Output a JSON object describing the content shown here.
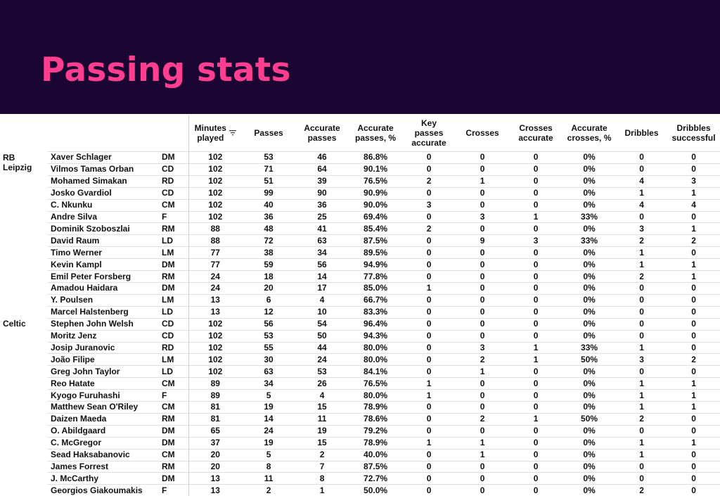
{
  "title": "Passing stats",
  "columns": [
    {
      "label": "Minutes\nplayed",
      "sort_icon": "sort-desc-icon"
    },
    {
      "label": "Passes"
    },
    {
      "label": "Accurate\npasses"
    },
    {
      "label": "Accurate\npasses, %"
    },
    {
      "label": "Key\npasses\naccurate"
    },
    {
      "label": "Crosses"
    },
    {
      "label": "Crosses\naccurate"
    },
    {
      "label": "Accurate\ncrosses, %"
    },
    {
      "label": "Dribbles"
    },
    {
      "label": "Dribbles\nsuccessful"
    }
  ],
  "teams": [
    {
      "name": "RB\nLeipzig",
      "players": [
        [
          "Xaver Schlager",
          "DM",
          "102",
          "53",
          "46",
          "86.8%",
          "0",
          "0",
          "0",
          "0%",
          "0",
          "0"
        ],
        [
          "Vilmos Tamas Orban",
          "CD",
          "102",
          "71",
          "64",
          "90.1%",
          "0",
          "0",
          "0",
          "0%",
          "0",
          "0"
        ],
        [
          "Mohamed Simakan",
          "RD",
          "102",
          "51",
          "39",
          "76.5%",
          "2",
          "1",
          "0",
          "0%",
          "4",
          "3"
        ],
        [
          "Josko Gvardiol",
          "CD",
          "102",
          "99",
          "90",
          "90.9%",
          "0",
          "0",
          "0",
          "0%",
          "1",
          "1"
        ],
        [
          "C. Nkunku",
          "CM",
          "102",
          "40",
          "36",
          "90.0%",
          "3",
          "0",
          "0",
          "0%",
          "4",
          "4"
        ],
        [
          "Andre Silva",
          "F",
          "102",
          "36",
          "25",
          "69.4%",
          "0",
          "3",
          "1",
          "33%",
          "0",
          "0"
        ],
        [
          "Dominik Szoboszlai",
          "RM",
          "88",
          "48",
          "41",
          "85.4%",
          "2",
          "0",
          "0",
          "0%",
          "3",
          "1"
        ],
        [
          "David Raum",
          "LD",
          "88",
          "72",
          "63",
          "87.5%",
          "0",
          "9",
          "3",
          "33%",
          "2",
          "2"
        ],
        [
          "Timo Werner",
          "LM",
          "77",
          "38",
          "34",
          "89.5%",
          "0",
          "0",
          "0",
          "0%",
          "1",
          "0"
        ],
        [
          "Kevin Kampl",
          "DM",
          "77",
          "59",
          "56",
          "94.9%",
          "0",
          "0",
          "0",
          "0%",
          "1",
          "1"
        ],
        [
          "Emil Peter Forsberg",
          "RM",
          "24",
          "18",
          "14",
          "77.8%",
          "0",
          "0",
          "0",
          "0%",
          "2",
          "1"
        ],
        [
          "Amadou Haidara",
          "DM",
          "24",
          "20",
          "17",
          "85.0%",
          "1",
          "0",
          "0",
          "0%",
          "0",
          "0"
        ],
        [
          "Y. Poulsen",
          "LM",
          "13",
          "6",
          "4",
          "66.7%",
          "0",
          "0",
          "0",
          "0%",
          "0",
          "0"
        ],
        [
          "Marcel Halstenberg",
          "LD",
          "13",
          "12",
          "10",
          "83.3%",
          "0",
          "0",
          "0",
          "0%",
          "0",
          "0"
        ]
      ]
    },
    {
      "name": "Celtic",
      "players": [
        [
          "Stephen John Welsh",
          "CD",
          "102",
          "56",
          "54",
          "96.4%",
          "0",
          "0",
          "0",
          "0%",
          "0",
          "0"
        ],
        [
          "Moritz Jenz",
          "CD",
          "102",
          "53",
          "50",
          "94.3%",
          "0",
          "0",
          "0",
          "0%",
          "0",
          "0"
        ],
        [
          "Josip Juranovic",
          "RD",
          "102",
          "55",
          "44",
          "80.0%",
          "0",
          "3",
          "1",
          "33%",
          "1",
          "0"
        ],
        [
          "João Filipe",
          "LM",
          "102",
          "30",
          "24",
          "80.0%",
          "0",
          "2",
          "1",
          "50%",
          "3",
          "2"
        ],
        [
          "Greg John Taylor",
          "LD",
          "102",
          "63",
          "53",
          "84.1%",
          "0",
          "1",
          "0",
          "0%",
          "0",
          "0"
        ],
        [
          "Reo Hatate",
          "CM",
          "89",
          "34",
          "26",
          "76.5%",
          "1",
          "0",
          "0",
          "0%",
          "1",
          "1"
        ],
        [
          "Kyogo Furuhashi",
          "F",
          "89",
          "5",
          "4",
          "80.0%",
          "1",
          "0",
          "0",
          "0%",
          "1",
          "1"
        ],
        [
          "Matthew Sean O'Riley",
          "CM",
          "81",
          "19",
          "15",
          "78.9%",
          "0",
          "0",
          "0",
          "0%",
          "1",
          "1"
        ],
        [
          "Daizen Maeda",
          "RM",
          "81",
          "14",
          "11",
          "78.6%",
          "0",
          "2",
          "1",
          "50%",
          "2",
          "0"
        ],
        [
          "O. Abildgaard",
          "DM",
          "65",
          "24",
          "19",
          "79.2%",
          "0",
          "0",
          "0",
          "0%",
          "0",
          "0"
        ],
        [
          "C. McGregor",
          "DM",
          "37",
          "19",
          "15",
          "78.9%",
          "1",
          "1",
          "0",
          "0%",
          "1",
          "1"
        ],
        [
          "Sead Haksabanovic",
          "CM",
          "20",
          "5",
          "2",
          "40.0%",
          "0",
          "1",
          "0",
          "0%",
          "1",
          "0"
        ],
        [
          "James Forrest",
          "RM",
          "20",
          "8",
          "7",
          "87.5%",
          "0",
          "0",
          "0",
          "0%",
          "0",
          "0"
        ],
        [
          "J. McCarthy",
          "DM",
          "13",
          "11",
          "8",
          "72.7%",
          "0",
          "0",
          "0",
          "0%",
          "0",
          "0"
        ],
        [
          "Georgios Giakoumakis",
          "F",
          "13",
          "2",
          "1",
          "50.0%",
          "0",
          "0",
          "0",
          "0%",
          "2",
          "0"
        ]
      ]
    }
  ]
}
